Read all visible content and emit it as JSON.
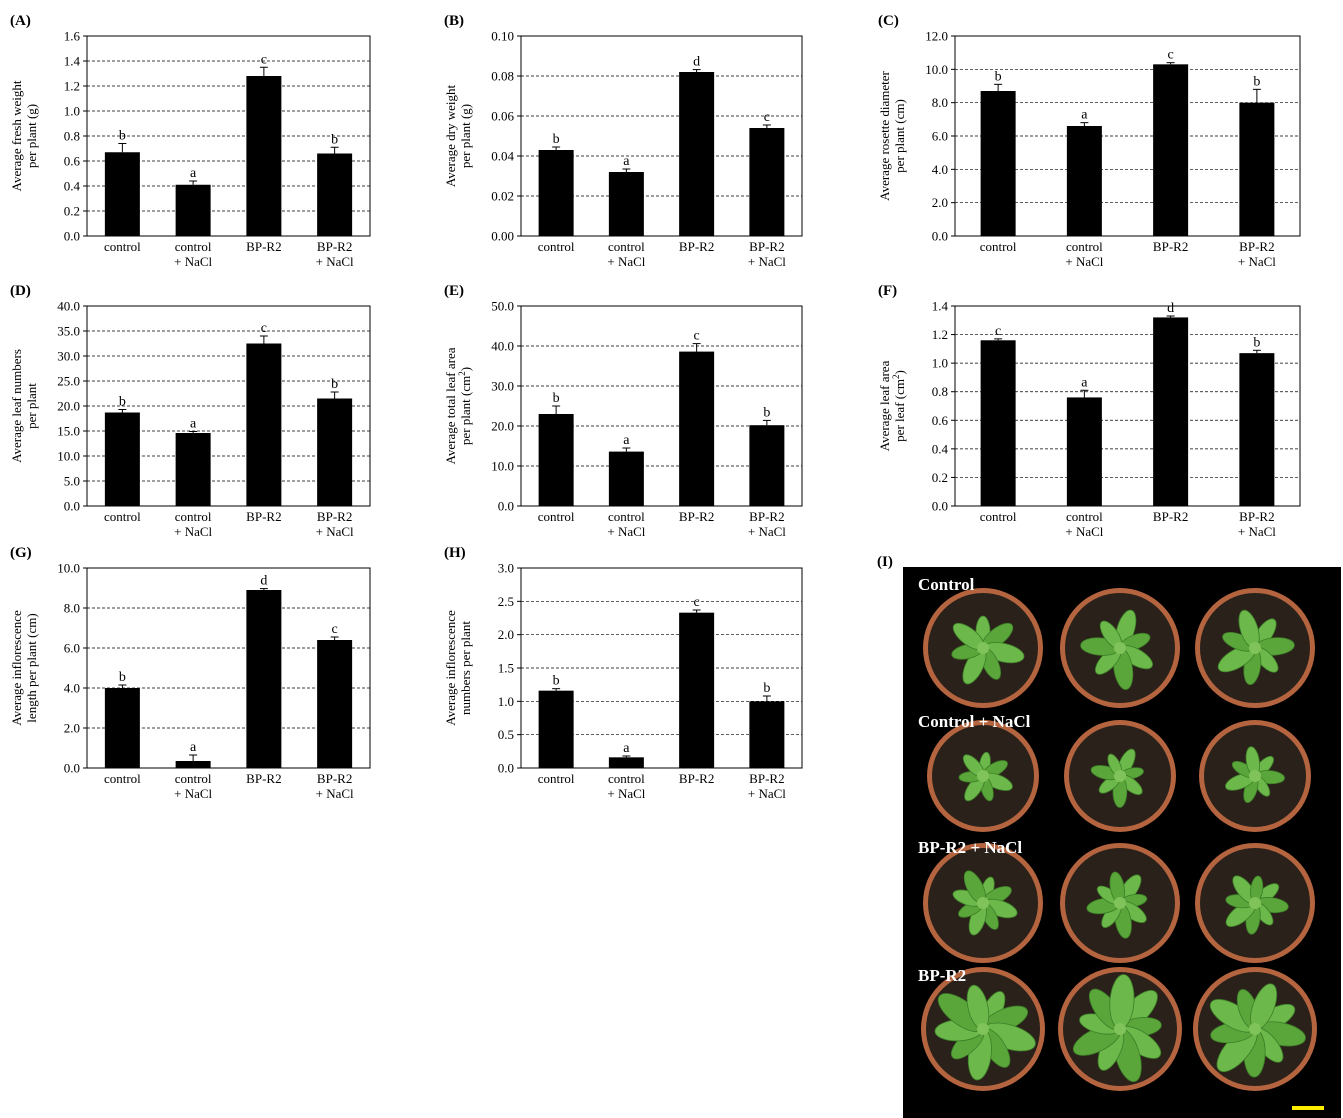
{
  "charts": [
    {
      "id": "A",
      "panel_label": "(A)",
      "ylabel_lines": [
        "Average fresh weight",
        "per plant  (g)"
      ],
      "ylabel_sup": "",
      "ticks": [
        "0.0",
        "0.2",
        "0.4",
        "0.6",
        "0.8",
        "1.0",
        "1.2",
        "1.4",
        "1.6"
      ],
      "categories": [
        [
          "control"
        ],
        [
          "control",
          "+ NaCl"
        ],
        [
          "BP-R2"
        ],
        [
          "BP-R2",
          "+ NaCl"
        ]
      ],
      "sig": [
        "b",
        "a",
        "c",
        "b"
      ]
    },
    {
      "id": "B",
      "panel_label": "(B)",
      "ylabel_lines": [
        "Average dry weight",
        "per plant  (g)"
      ],
      "ylabel_sup": "",
      "ticks": [
        "0.00",
        "0.02",
        "0.04",
        "0.06",
        "0.08",
        "0.10"
      ],
      "categories": [
        [
          "control"
        ],
        [
          "control",
          "+ NaCl"
        ],
        [
          "BP-R2"
        ],
        [
          "BP-R2",
          "+ NaCl"
        ]
      ],
      "sig": [
        "b",
        "a",
        "d",
        "c"
      ]
    },
    {
      "id": "C",
      "panel_label": "(C)",
      "ylabel_lines": [
        "Average rosette diameter",
        "per plant  (cm)"
      ],
      "ylabel_sup": "",
      "ticks": [
        "0.0",
        "2.0",
        "4.0",
        "6.0",
        "8.0",
        "10.0",
        "12.0"
      ],
      "categories": [
        [
          "control"
        ],
        [
          "control",
          "+ NaCl"
        ],
        [
          "BP-R2"
        ],
        [
          "BP-R2",
          "+ NaCl"
        ]
      ],
      "sig": [
        "b",
        "a",
        "c",
        "b"
      ]
    },
    {
      "id": "D",
      "panel_label": "(D)",
      "ylabel_lines": [
        "Average leaf numbers",
        "per plant"
      ],
      "ylabel_sup": "",
      "ticks": [
        "0.0",
        "5.0",
        "10.0",
        "15.0",
        "20.0",
        "25.0",
        "30.0",
        "35.0",
        "40.0"
      ],
      "categories": [
        [
          "control"
        ],
        [
          "control",
          "+ NaCl"
        ],
        [
          "BP-R2"
        ],
        [
          "BP-R2",
          "+ NaCl"
        ]
      ],
      "sig": [
        "b",
        "a",
        "c",
        "b"
      ]
    },
    {
      "id": "E",
      "panel_label": "(E)",
      "ylabel_lines": [
        "Average total leaf area",
        "per plant  (cm"
      ],
      "ylabel_sup": "2",
      "ticks": [
        "0.0",
        "10.0",
        "20.0",
        "30.0",
        "40.0",
        "50.0"
      ],
      "categories": [
        [
          "control"
        ],
        [
          "control",
          "+ NaCl"
        ],
        [
          "BP-R2"
        ],
        [
          "BP-R2",
          "+ NaCl"
        ]
      ],
      "sig": [
        "b",
        "a",
        "c",
        "b"
      ]
    },
    {
      "id": "F",
      "panel_label": "(F)",
      "ylabel_lines": [
        "Average leaf area",
        "per leaf  (cm"
      ],
      "ylabel_sup": "2",
      "ticks": [
        "0.0",
        "0.2",
        "0.4",
        "0.6",
        "0.8",
        "1.0",
        "1.2",
        "1.4"
      ],
      "categories": [
        [
          "control"
        ],
        [
          "control",
          "+ NaCl"
        ],
        [
          "BP-R2"
        ],
        [
          "BP-R2",
          "+ NaCl"
        ]
      ],
      "sig": [
        "c",
        "a",
        "d",
        "b"
      ]
    },
    {
      "id": "G",
      "panel_label": "(G)",
      "ylabel_lines": [
        "Average inflorescence",
        "length  per plant  (cm)"
      ],
      "ylabel_sup": "",
      "ticks": [
        "0.0",
        "2.0",
        "4.0",
        "6.0",
        "8.0",
        "10.0"
      ],
      "categories": [
        [
          "control"
        ],
        [
          "control",
          "+ NaCl"
        ],
        [
          "BP-R2"
        ],
        [
          "BP-R2",
          "+ NaCl"
        ]
      ],
      "sig": [
        "b",
        "a",
        "d",
        "c"
      ]
    },
    {
      "id": "H",
      "panel_label": "(H)",
      "ylabel_lines": [
        "Average inflorescence",
        "numbers  per plant"
      ],
      "ylabel_sup": "",
      "ticks": [
        "0.0",
        "0.5",
        "1.0",
        "1.5",
        "2.0",
        "2.5",
        "3.0"
      ],
      "categories": [
        [
          "control"
        ],
        [
          "control",
          "+ NaCl"
        ],
        [
          "BP-R2"
        ],
        [
          "BP-R2",
          "+ NaCl"
        ]
      ],
      "sig": [
        "b",
        "a",
        "c",
        "b"
      ]
    }
  ],
  "photo": {
    "panel_label": "(I)",
    "row_labels": [
      "Control",
      "Control + NaCl",
      "BP-R2 + NaCl",
      "BP-R2"
    ]
  },
  "chart_data": [
    {
      "type": "bar",
      "panel": "A",
      "categories": [
        "control",
        "control + NaCl",
        "BP-R2",
        "BP-R2 + NaCl"
      ],
      "values": [
        0.67,
        0.41,
        1.28,
        0.66
      ],
      "errors": [
        0.07,
        0.03,
        0.07,
        0.05
      ],
      "ylim": [
        0,
        1.6
      ],
      "ylabel": "Average fresh weight per plant (g)",
      "grid": true
    },
    {
      "type": "bar",
      "panel": "B",
      "categories": [
        "control",
        "control + NaCl",
        "BP-R2",
        "BP-R2 + NaCl"
      ],
      "values": [
        0.043,
        0.032,
        0.082,
        0.054
      ],
      "errors": [
        0.0015,
        0.0015,
        0.0012,
        0.0015
      ],
      "ylim": [
        0,
        0.1
      ],
      "ylabel": "Average dry weight per plant (g)",
      "grid": true
    },
    {
      "type": "bar",
      "panel": "C",
      "categories": [
        "control",
        "control + NaCl",
        "BP-R2",
        "BP-R2 + NaCl"
      ],
      "values": [
        8.7,
        6.6,
        10.3,
        8.0
      ],
      "errors": [
        0.4,
        0.2,
        0.1,
        0.8
      ],
      "ylim": [
        0,
        12
      ],
      "ylabel": "Average rosette diameter per plant (cm)",
      "grid": true
    },
    {
      "type": "bar",
      "panel": "D",
      "categories": [
        "control",
        "control + NaCl",
        "BP-R2",
        "BP-R2 + NaCl"
      ],
      "values": [
        18.7,
        14.6,
        32.5,
        21.5
      ],
      "errors": [
        0.6,
        0.3,
        1.5,
        1.3
      ],
      "ylim": [
        0,
        40
      ],
      "ylabel": "Average leaf numbers per plant",
      "grid": true
    },
    {
      "type": "bar",
      "panel": "E",
      "categories": [
        "control",
        "control + NaCl",
        "BP-R2",
        "BP-R2 + NaCl"
      ],
      "values": [
        23.0,
        13.6,
        38.6,
        20.2
      ],
      "errors": [
        2.0,
        0.9,
        2.0,
        1.2
      ],
      "ylim": [
        0,
        50
      ],
      "ylabel": "Average total leaf area per plant (cm2)",
      "grid": true
    },
    {
      "type": "bar",
      "panel": "F",
      "categories": [
        "control",
        "control + NaCl",
        "BP-R2",
        "BP-R2 + NaCl"
      ],
      "values": [
        1.16,
        0.76,
        1.32,
        1.07
      ],
      "errors": [
        0.01,
        0.05,
        0.01,
        0.02
      ],
      "ylim": [
        0,
        1.4
      ],
      "ylabel": "Average leaf area per leaf (cm2)",
      "grid": true
    },
    {
      "type": "bar",
      "panel": "G",
      "categories": [
        "control",
        "control + NaCl",
        "BP-R2",
        "BP-R2 + NaCl"
      ],
      "values": [
        4.0,
        0.35,
        8.9,
        6.4
      ],
      "errors": [
        0.15,
        0.3,
        0.07,
        0.15
      ],
      "ylim": [
        0,
        10
      ],
      "ylabel": "Average inflorescence length per plant (cm)",
      "grid": true
    },
    {
      "type": "bar",
      "panel": "H",
      "categories": [
        "control",
        "control + NaCl",
        "BP-R2",
        "BP-R2 + NaCl"
      ],
      "values": [
        1.16,
        0.16,
        2.33,
        1.0
      ],
      "errors": [
        0.03,
        0.02,
        0.04,
        0.08
      ],
      "ylim": [
        0,
        3
      ],
      "ylabel": "Average inflorescence numbers per plant",
      "grid": true
    }
  ]
}
